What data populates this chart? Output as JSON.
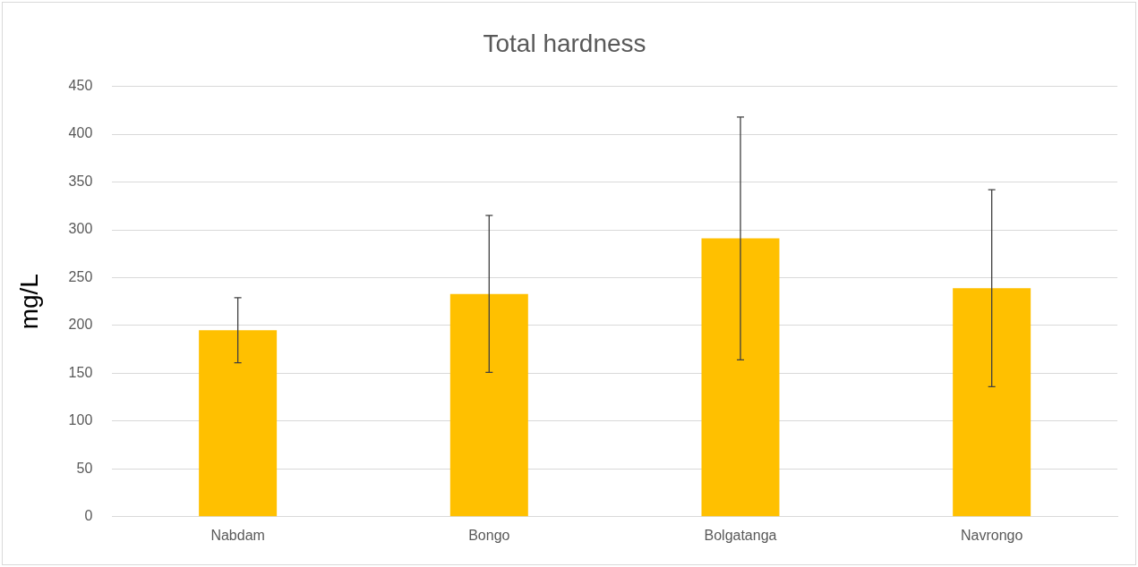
{
  "chart_data": {
    "type": "bar",
    "title": "Total hardness",
    "ylabel": "mg/L",
    "categories": [
      "Nabdam",
      "Bongo",
      "Bolgatanga",
      "Navrongo"
    ],
    "values": [
      195,
      233,
      291,
      239
    ],
    "errors": [
      34,
      82,
      127,
      103
    ],
    "color": "#ffc000",
    "ylim": [
      0,
      450
    ],
    "yticks": [
      0,
      50,
      100,
      150,
      200,
      250,
      300,
      350,
      400,
      450
    ],
    "grid": "y",
    "legend": false
  }
}
